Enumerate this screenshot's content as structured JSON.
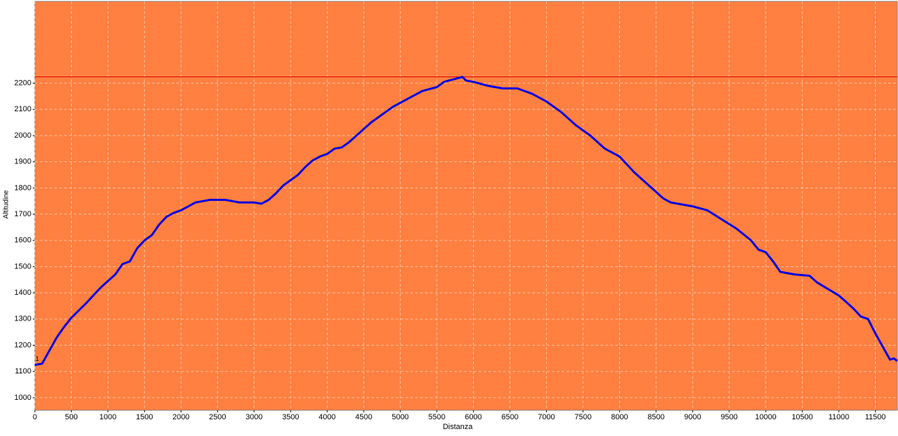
{
  "chart_data": {
    "type": "line",
    "x_label": "Distanza",
    "y_label": "Altitudine",
    "annotation": "1",
    "x": [
      0,
      100,
      200,
      300,
      400,
      500,
      700,
      900,
      1000,
      1100,
      1200,
      1300,
      1400,
      1500,
      1600,
      1700,
      1800,
      1900,
      2000,
      2200,
      2400,
      2600,
      2800,
      3000,
      3100,
      3200,
      3300,
      3400,
      3600,
      3700,
      3800,
      3900,
      4000,
      4100,
      4200,
      4300,
      4400,
      4500,
      4600,
      4700,
      4800,
      4900,
      5000,
      5200,
      5300,
      5500,
      5600,
      5800,
      5850,
      5900,
      6000,
      6200,
      6400,
      6600,
      6800,
      7000,
      7200,
      7400,
      7600,
      7800,
      8000,
      8200,
      8400,
      8600,
      8700,
      9000,
      9200,
      9400,
      9600,
      9800,
      9900,
      10000,
      10100,
      10200,
      10400,
      10600,
      10700,
      11000,
      11200,
      11300,
      11400,
      11500,
      11600,
      11700,
      11750,
      11800
    ],
    "values": [
      1125,
      1130,
      1180,
      1230,
      1270,
      1305,
      1360,
      1420,
      1445,
      1470,
      1510,
      1520,
      1570,
      1600,
      1620,
      1660,
      1690,
      1705,
      1715,
      1745,
      1755,
      1755,
      1745,
      1745,
      1740,
      1755,
      1780,
      1810,
      1850,
      1880,
      1905,
      1920,
      1930,
      1950,
      1955,
      1975,
      2000,
      2025,
      2050,
      2070,
      2090,
      2110,
      2125,
      2155,
      2170,
      2185,
      2205,
      2220,
      2224,
      2210,
      2205,
      2190,
      2180,
      2180,
      2160,
      2130,
      2090,
      2040,
      2000,
      1950,
      1920,
      1860,
      1810,
      1760,
      1745,
      1730,
      1715,
      1680,
      1645,
      1600,
      1565,
      1555,
      1520,
      1480,
      1470,
      1465,
      1440,
      1390,
      1340,
      1310,
      1300,
      1245,
      1195,
      1145,
      1150,
      1140
    ],
    "color": "#0000e0",
    "max_line": 2224,
    "max_line_color": "#e00000",
    "background": "#ff8040",
    "xlim": [
      0,
      11800
    ],
    "ylim": [
      952,
      2512
    ],
    "xticks": [
      0,
      500,
      1000,
      1500,
      2000,
      2500,
      3000,
      3500,
      4000,
      4500,
      5000,
      5500,
      6000,
      6500,
      7000,
      7500,
      8000,
      8500,
      9000,
      9500,
      10000,
      10500,
      11000,
      11500
    ],
    "yticks": [
      1000,
      1100,
      1200,
      1300,
      1400,
      1500,
      1600,
      1700,
      1800,
      1900,
      2000,
      2100,
      2200
    ],
    "grid": true
  }
}
